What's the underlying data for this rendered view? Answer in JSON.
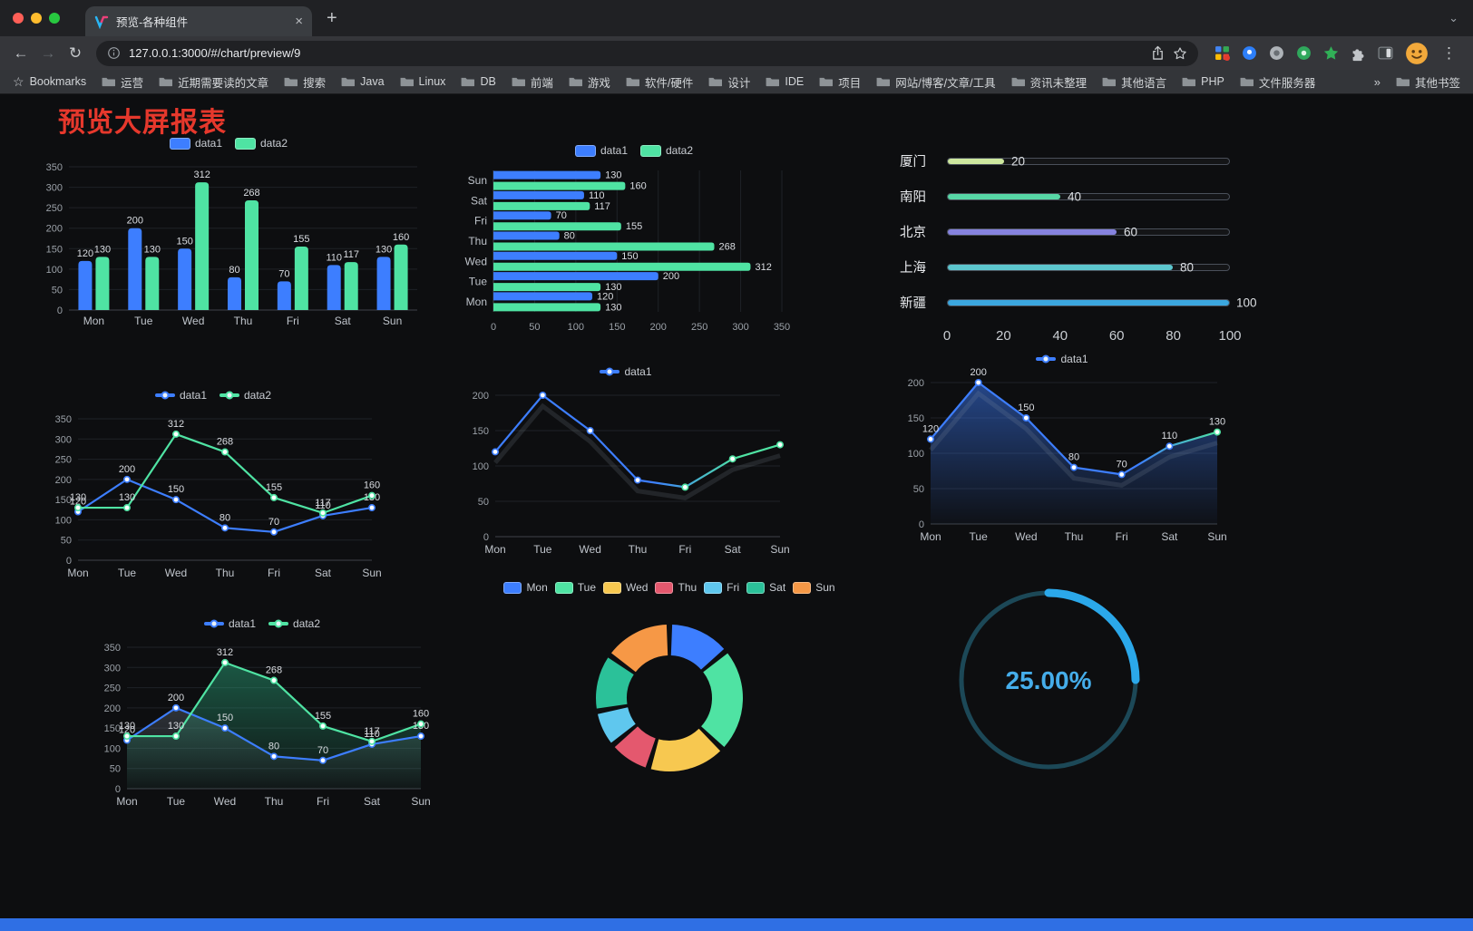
{
  "browser": {
    "tab": {
      "title": "预览-各种组件",
      "close_glyph": "×",
      "new_tab_glyph": "+"
    },
    "toolbar": {
      "back_glyph": "←",
      "forward_glyph": "→",
      "reload_glyph": "↻",
      "menu_glyph": "⋮",
      "tab_search_glyph": "⌄"
    },
    "address": {
      "url": "127.0.0.1:3000/#/chart/preview/9"
    },
    "bookmarks_bar": {
      "star_glyph": "☆",
      "bookmarks_label": "Bookmarks",
      "folders": [
        "运营",
        "近期需要读的文章",
        "搜索",
        "Java",
        "Linux",
        "DB",
        "前端",
        "游戏",
        "软件/硬件",
        "设计",
        "IDE",
        "项目",
        "网站/博客/文章/工具",
        "资讯未整理",
        "其他语言",
        "PHP",
        "文件服务器"
      ],
      "overflow_glyph": "»",
      "other_bookmarks_label": "其他书签"
    }
  },
  "page": {
    "title": "预览大屏报表",
    "footer_color": "#2F6FE4",
    "background": "#0D0E10"
  },
  "chart_data": [
    {
      "id": "bar-vertical",
      "type": "bar",
      "categories": [
        "Mon",
        "Tue",
        "Wed",
        "Thu",
        "Fri",
        "Sat",
        "Sun"
      ],
      "series": [
        {
          "name": "data1",
          "color": "#3D7EFF",
          "values": [
            120,
            200,
            150,
            80,
            70,
            110,
            130
          ]
        },
        {
          "name": "data2",
          "color": "#4FE3A3",
          "values": [
            130,
            130,
            312,
            268,
            155,
            117,
            160
          ]
        }
      ],
      "ylim": [
        0,
        350
      ],
      "yticks": [
        0,
        50,
        100,
        150,
        200,
        250,
        300,
        350
      ],
      "show_labels": true
    },
    {
      "id": "bar-horizontal",
      "type": "bar-horizontal",
      "categories_top_to_bottom": [
        "Sun",
        "Sat",
        "Fri",
        "Thu",
        "Wed",
        "Tue",
        "Mon"
      ],
      "series": [
        {
          "name": "data1",
          "color": "#3D7EFF",
          "values": [
            130,
            110,
            70,
            80,
            150,
            200,
            120
          ]
        },
        {
          "name": "data2",
          "color": "#4FE3A3",
          "values": [
            160,
            117,
            155,
            268,
            312,
            130,
            130
          ]
        }
      ],
      "xlim": [
        0,
        350
      ],
      "xticks": [
        0,
        50,
        100,
        150,
        200,
        250,
        300,
        350
      ],
      "show_labels": true
    },
    {
      "id": "progress",
      "type": "progress",
      "max": 100,
      "items": [
        {
          "label": "厦门",
          "value": 20,
          "color": "#CDE79E"
        },
        {
          "label": "南阳",
          "value": 40,
          "color": "#57D7A6"
        },
        {
          "label": "北京",
          "value": 60,
          "color": "#8582DE"
        },
        {
          "label": "上海",
          "value": 80,
          "color": "#5CC6CE"
        },
        {
          "label": "新疆",
          "value": 100,
          "color": "#3BA7DF"
        }
      ],
      "xticks": [
        0,
        20,
        40,
        60,
        80,
        100
      ]
    },
    {
      "id": "line-two",
      "type": "line",
      "categories": [
        "Mon",
        "Tue",
        "Wed",
        "Thu",
        "Fri",
        "Sat",
        "Sun"
      ],
      "series": [
        {
          "name": "data1",
          "color": "#3D7EFF",
          "values": [
            120,
            200,
            150,
            80,
            70,
            110,
            130
          ]
        },
        {
          "name": "data2",
          "color": "#4FE3A3",
          "values": [
            130,
            130,
            312,
            268,
            155,
            117,
            160
          ]
        }
      ],
      "ylim": [
        0,
        350
      ],
      "yticks": [
        0,
        50,
        100,
        150,
        200,
        250,
        300,
        350
      ],
      "show_labels": true
    },
    {
      "id": "line-gradient",
      "type": "line",
      "categories": [
        "Mon",
        "Tue",
        "Wed",
        "Thu",
        "Fri",
        "Sat",
        "Sun"
      ],
      "series": [
        {
          "name": "data1",
          "color": "#3D7EFF",
          "values": [
            120,
            200,
            150,
            80,
            70,
            110,
            130
          ]
        }
      ],
      "ylim": [
        0,
        200
      ],
      "yticks": [
        0,
        50,
        100,
        150,
        200
      ],
      "show_labels": false,
      "stroke_gradient": {
        "start": "#3D7EFF",
        "end": "#4FE3A3",
        "stops": [
          [
            0,
            "#3D7EFF"
          ],
          [
            0.55,
            "#3D7EFF"
          ],
          [
            0.85,
            "#4FE3A3"
          ],
          [
            1,
            "#4FE3A3"
          ]
        ]
      },
      "point_split": 4,
      "shadow": true
    },
    {
      "id": "line-area",
      "type": "line",
      "categories": [
        "Mon",
        "Tue",
        "Wed",
        "Thu",
        "Fri",
        "Sat",
        "Sun"
      ],
      "series": [
        {
          "name": "data1",
          "color": "#3D7EFF",
          "values": [
            120,
            200,
            150,
            80,
            70,
            110,
            130
          ],
          "area": {
            "color": "#3D7EFF",
            "from": 0.5,
            "to": 0.03
          }
        }
      ],
      "ylim": [
        0,
        200
      ],
      "yticks": [
        0,
        50,
        100,
        150,
        200
      ],
      "show_labels": true,
      "stroke_gradient": {
        "start": "#3D7EFF",
        "end": "#4FE3A3",
        "stops": [
          [
            0,
            "#3D7EFF"
          ],
          [
            0.72,
            "#3D7EFF"
          ],
          [
            1,
            "#4FE3A3"
          ]
        ]
      },
      "point_split": 6,
      "shadow": true
    },
    {
      "id": "line-area-two",
      "type": "line",
      "categories": [
        "Mon",
        "Tue",
        "Wed",
        "Thu",
        "Fri",
        "Sat",
        "Sun"
      ],
      "series": [
        {
          "name": "data1",
          "color": "#3D7EFF",
          "values": [
            120,
            200,
            150,
            80,
            70,
            110,
            130
          ],
          "area": {
            "color": "#7E8B99",
            "from": 0.3,
            "to": 0.02
          }
        },
        {
          "name": "data2",
          "color": "#4FE3A3",
          "values": [
            130,
            130,
            312,
            268,
            155,
            117,
            160
          ],
          "area": {
            "color": "#2FBE8C",
            "from": 0.42,
            "to": 0.04
          }
        }
      ],
      "ylim": [
        0,
        350
      ],
      "yticks": [
        0,
        50,
        100,
        150,
        200,
        250,
        300,
        350
      ],
      "show_labels": true
    },
    {
      "id": "pie",
      "type": "pie",
      "labels": [
        "Mon",
        "Tue",
        "Wed",
        "Thu",
        "Fri",
        "Sat",
        "Sun"
      ],
      "values": [
        120,
        200,
        150,
        80,
        70,
        110,
        130
      ],
      "colors": [
        "#3D7EFF",
        "#4FE3A3",
        "#F7C850",
        "#E4586E",
        "#5FC7EE",
        "#2BC199",
        "#F69846"
      ]
    },
    {
      "id": "gauge",
      "type": "gauge",
      "value_percent": 25,
      "display": "25.00%",
      "color": "#2BA8EA",
      "track_color": "#1C4857",
      "text_color": "#45ADEA"
    }
  ]
}
